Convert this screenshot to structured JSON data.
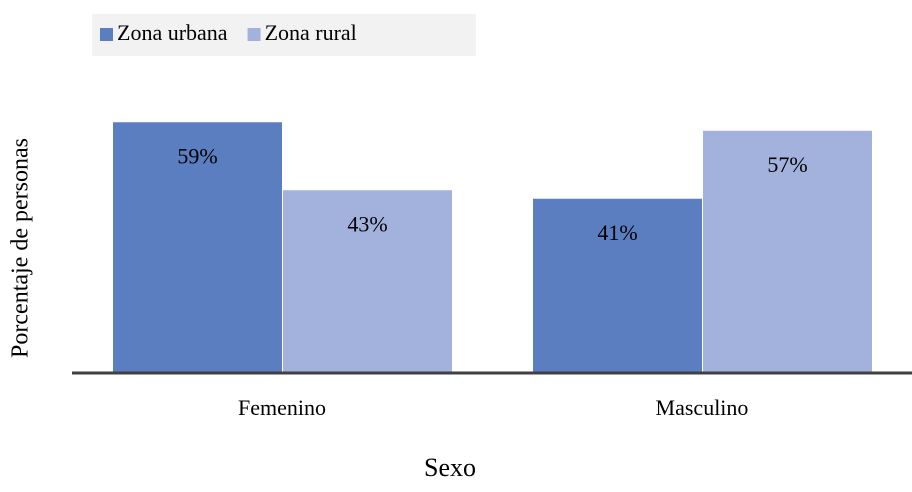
{
  "chart_data": {
    "type": "bar",
    "categories": [
      "Femenino",
      "Masculino"
    ],
    "x_label": "Sexo",
    "y_label": "Porcentaje de personas",
    "series": [
      {
        "name": "Zona urbana",
        "color": "#5b7ec0",
        "values": [
          59,
          41
        ],
        "value_labels": [
          "59%",
          "41%"
        ]
      },
      {
        "name": "Zona rural",
        "color": "#a3b2dc",
        "values": [
          43,
          57
        ],
        "value_labels": [
          "43%",
          "57%"
        ]
      }
    ],
    "legend": "top"
  }
}
